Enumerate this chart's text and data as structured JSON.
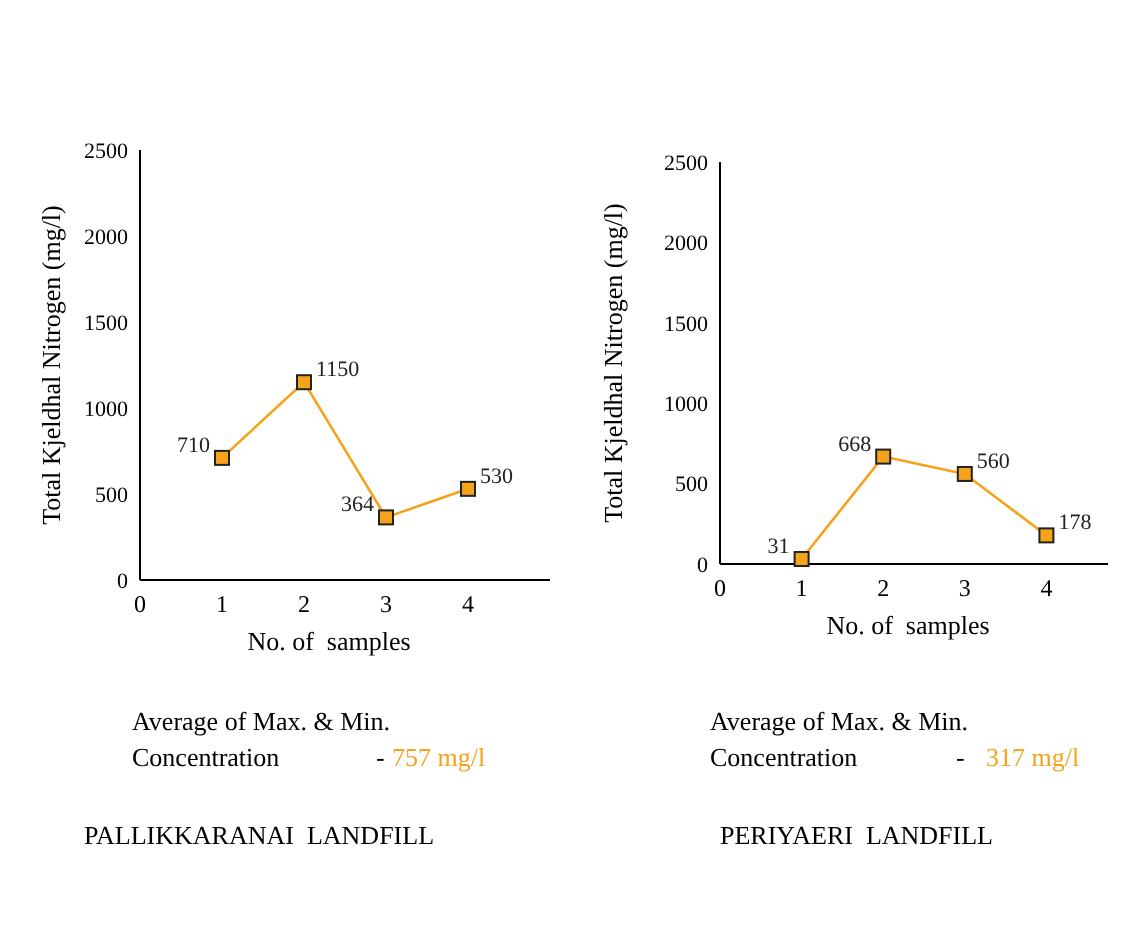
{
  "chart_data": [
    {
      "type": "line",
      "xlabel": "No. of  samples",
      "ylabel": "Total Kjeldhal Nitrogen (mg/l)",
      "x": [
        1,
        2,
        3,
        4
      ],
      "series": [
        {
          "color": "#f5a31a",
          "values": [
            710,
            1150,
            364,
            530
          ]
        }
      ],
      "xlim": [
        0,
        5
      ],
      "xticks": [
        0,
        1,
        2,
        3,
        4
      ],
      "ylim": [
        0,
        2500
      ],
      "yticks": [
        0,
        500,
        1000,
        1500,
        2000,
        2500
      ],
      "marker": "square",
      "data_labels": true,
      "annotations": [
        "Average of Max. & Min.",
        "Concentration",
        "-",
        "757 mg/l",
        "PALLIKKARANAI  LANDFILL"
      ]
    },
    {
      "type": "line",
      "xlabel": "No. of  samples",
      "ylabel": "Total Kjeldhal Nitrogen (mg/l)",
      "x": [
        1,
        2,
        3,
        4
      ],
      "series": [
        {
          "color": "#f5a31a",
          "values": [
            31,
            668,
            560,
            178
          ]
        }
      ],
      "xlim": [
        0,
        5
      ],
      "xticks": [
        0,
        1,
        2,
        3,
        4
      ],
      "ylim": [
        0,
        2500
      ],
      "yticks": [
        0,
        500,
        1000,
        1500,
        2000,
        2500
      ],
      "marker": "square",
      "data_labels": true,
      "annotations": [
        "Average of Max. & Min.",
        "Concentration",
        "-",
        "317 mg/l",
        "PERIYAERI  LANDFILL"
      ]
    }
  ]
}
